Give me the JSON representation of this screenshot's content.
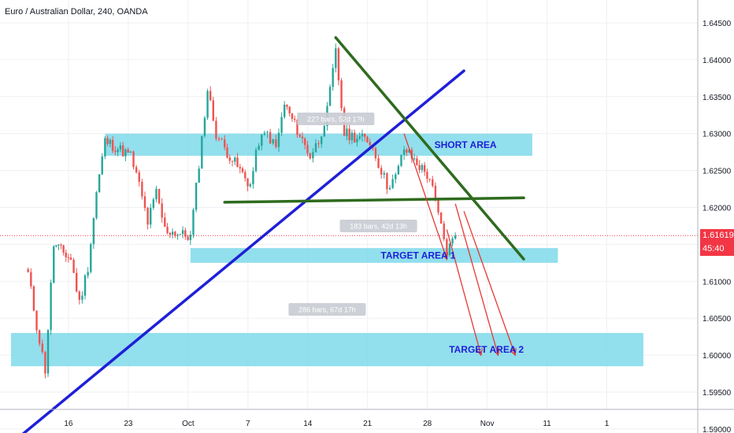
{
  "chart_data": {
    "type": "candlestick",
    "title": "Euro / Australian Dollar, 240, OANDA",
    "xlabel": "",
    "ylabel": "",
    "ylim": [
      1.5855,
      1.6495
    ],
    "y_ticks": [
      "1.64500",
      "1.64000",
      "1.63500",
      "1.63000",
      "1.62500",
      "1.62000",
      "1.61500",
      "1.61000",
      "1.60500",
      "1.60000",
      "1.59500",
      "1.59000"
    ],
    "x_ticks": [
      "16",
      "23",
      "Oct",
      "7",
      "14",
      "21",
      "28",
      "Nov",
      "11",
      "1"
    ],
    "grid": true,
    "last_price": {
      "label": "1.61619",
      "value": 1.61619,
      "countdown": "45:40"
    },
    "close_series": [
      {
        "date": "Sep 11",
        "close": 1.611
      },
      {
        "date": "Sep 12",
        "close": 1.604
      },
      {
        "date": "Sep 13",
        "close": 1.598
      },
      {
        "date": "Sep 14",
        "close": 1.615
      },
      {
        "date": "Sep 16",
        "close": 1.613
      },
      {
        "date": "Sep 17",
        "close": 1.607
      },
      {
        "date": "Sep 18",
        "close": 1.612
      },
      {
        "date": "Sep 19",
        "close": 1.622
      },
      {
        "date": "Sep 20",
        "close": 1.629
      },
      {
        "date": "Sep 23",
        "close": 1.627
      },
      {
        "date": "Sep 24",
        "close": 1.623
      },
      {
        "date": "Sep 25",
        "close": 1.618
      },
      {
        "date": "Sep 26",
        "close": 1.622
      },
      {
        "date": "Sep 27",
        "close": 1.617
      },
      {
        "date": "Sep 30",
        "close": 1.616
      },
      {
        "date": "Oct 1",
        "close": 1.626
      },
      {
        "date": "Oct 2",
        "close": 1.636
      },
      {
        "date": "Oct 3",
        "close": 1.63
      },
      {
        "date": "Oct 4",
        "close": 1.628
      },
      {
        "date": "Oct 7",
        "close": 1.623
      },
      {
        "date": "Oct 8",
        "close": 1.629
      },
      {
        "date": "Oct 9",
        "close": 1.63
      },
      {
        "date": "Oct 10",
        "close": 1.628
      },
      {
        "date": "Oct 11",
        "close": 1.634
      },
      {
        "date": "Oct 14",
        "close": 1.627
      },
      {
        "date": "Oct 15",
        "close": 1.629
      },
      {
        "date": "Oct 16",
        "close": 1.633
      },
      {
        "date": "Oct 17",
        "close": 1.641
      },
      {
        "date": "Oct 18",
        "close": 1.63
      },
      {
        "date": "Oct 21",
        "close": 1.629
      },
      {
        "date": "Oct 22",
        "close": 1.626
      },
      {
        "date": "Oct 23",
        "close": 1.623
      },
      {
        "date": "Oct 24",
        "close": 1.624
      },
      {
        "date": "Oct 25",
        "close": 1.628
      },
      {
        "date": "Oct 28",
        "close": 1.624
      },
      {
        "date": "Oct 29",
        "close": 1.619
      },
      {
        "date": "Oct 30",
        "close": 1.614
      },
      {
        "date": "Oct 31",
        "close": 1.6162
      }
    ],
    "zones": [
      {
        "label": "SHORT AREA",
        "from_date": "Sep 20",
        "to_date": "Nov 9",
        "low": 1.627,
        "high": 1.63
      },
      {
        "label": "TARGET AREA 1",
        "from_date": "Sep 30",
        "to_date": "Nov 12",
        "low": 1.6125,
        "high": 1.6145
      },
      {
        "label": "TARGET AREA 2",
        "from_date": "Sep 9",
        "to_date": "Nov 22",
        "low": 1.5985,
        "high": 1.603
      }
    ],
    "trend_lines": [
      {
        "name": "blue-rising-trendline",
        "color": "#1f1fd8",
        "from": {
          "date": "Sep 9",
          "price": 1.588
        },
        "to": {
          "date": "Nov 1",
          "price": 1.6385
        }
      },
      {
        "name": "green-descending-line",
        "color": "#2e6b1e",
        "from": {
          "date": "Oct 17",
          "price": 1.643
        },
        "to": {
          "date": "Nov 8",
          "price": 1.613
        }
      },
      {
        "name": "green-horizontal-line",
        "color": "#2e6b1e",
        "from": {
          "date": "Oct 4",
          "price": 1.6207
        },
        "to": {
          "date": "Nov 8",
          "price": 1.6213
        }
      }
    ],
    "arrows": [
      {
        "from": {
          "date": "Oct 25",
          "price": 1.63
        },
        "to": {
          "date": "Oct 30",
          "price": 1.613
        }
      },
      {
        "from": {
          "date": "Oct 30",
          "price": 1.617
        },
        "to": {
          "date": "Nov 3",
          "price": 1.6
        }
      },
      {
        "from": {
          "date": "Oct 31",
          "price": 1.6205
        },
        "to": {
          "date": "Nov 5",
          "price": 1.6
        }
      },
      {
        "from": {
          "date": "Nov 1",
          "price": 1.6195
        },
        "to": {
          "date": "Nov 7",
          "price": 1.6
        }
      }
    ],
    "range_labels": [
      {
        "text": "22? bars, 52d 1?h",
        "date": "Oct 17",
        "price": 1.632
      },
      {
        "text": "183 bars, 42d 13h",
        "date": "Oct 22",
        "price": 1.6175
      },
      {
        "text": "286 bars, 67d 17h",
        "date": "Oct 16",
        "price": 1.6062
      }
    ],
    "colors": {
      "up": "#26a69a",
      "down": "#ef5350",
      "zone": "#7fd9ea",
      "last_price": "#f23645",
      "blue_line": "#1f1fd8",
      "green_line": "#2e6b1e",
      "arrow": "#e53935",
      "zone_text": "#1f1fd8"
    }
  }
}
